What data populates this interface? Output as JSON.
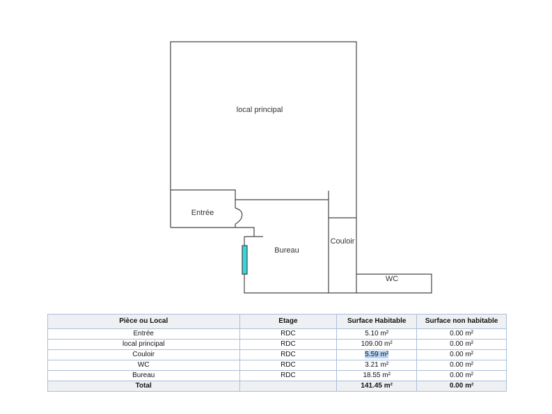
{
  "plan": {
    "rooms": [
      "local principal",
      "Entrée",
      "Bureau",
      "Couloir",
      "WC"
    ],
    "window_color": "#35d6dc"
  },
  "table": {
    "headers": [
      "Pièce ou Local",
      "Etage",
      "Surface Habitable",
      "Surface non habitable"
    ],
    "rows": [
      [
        "Entrée",
        "RDC",
        "5.10 m²",
        "0.00 m²"
      ],
      [
        "local principal",
        "RDC",
        "109.00 m²",
        "0.00 m²"
      ],
      [
        "Couloir",
        "RDC",
        "5.59 m²",
        "0.00 m²"
      ],
      [
        "WC",
        "RDC",
        "3.21 m²",
        "0.00 m²"
      ],
      [
        "Bureau",
        "RDC",
        "18.55 m²",
        "0.00 m²"
      ]
    ],
    "total": [
      "Total",
      "",
      "141.45 m²",
      "0.00 m²"
    ]
  }
}
